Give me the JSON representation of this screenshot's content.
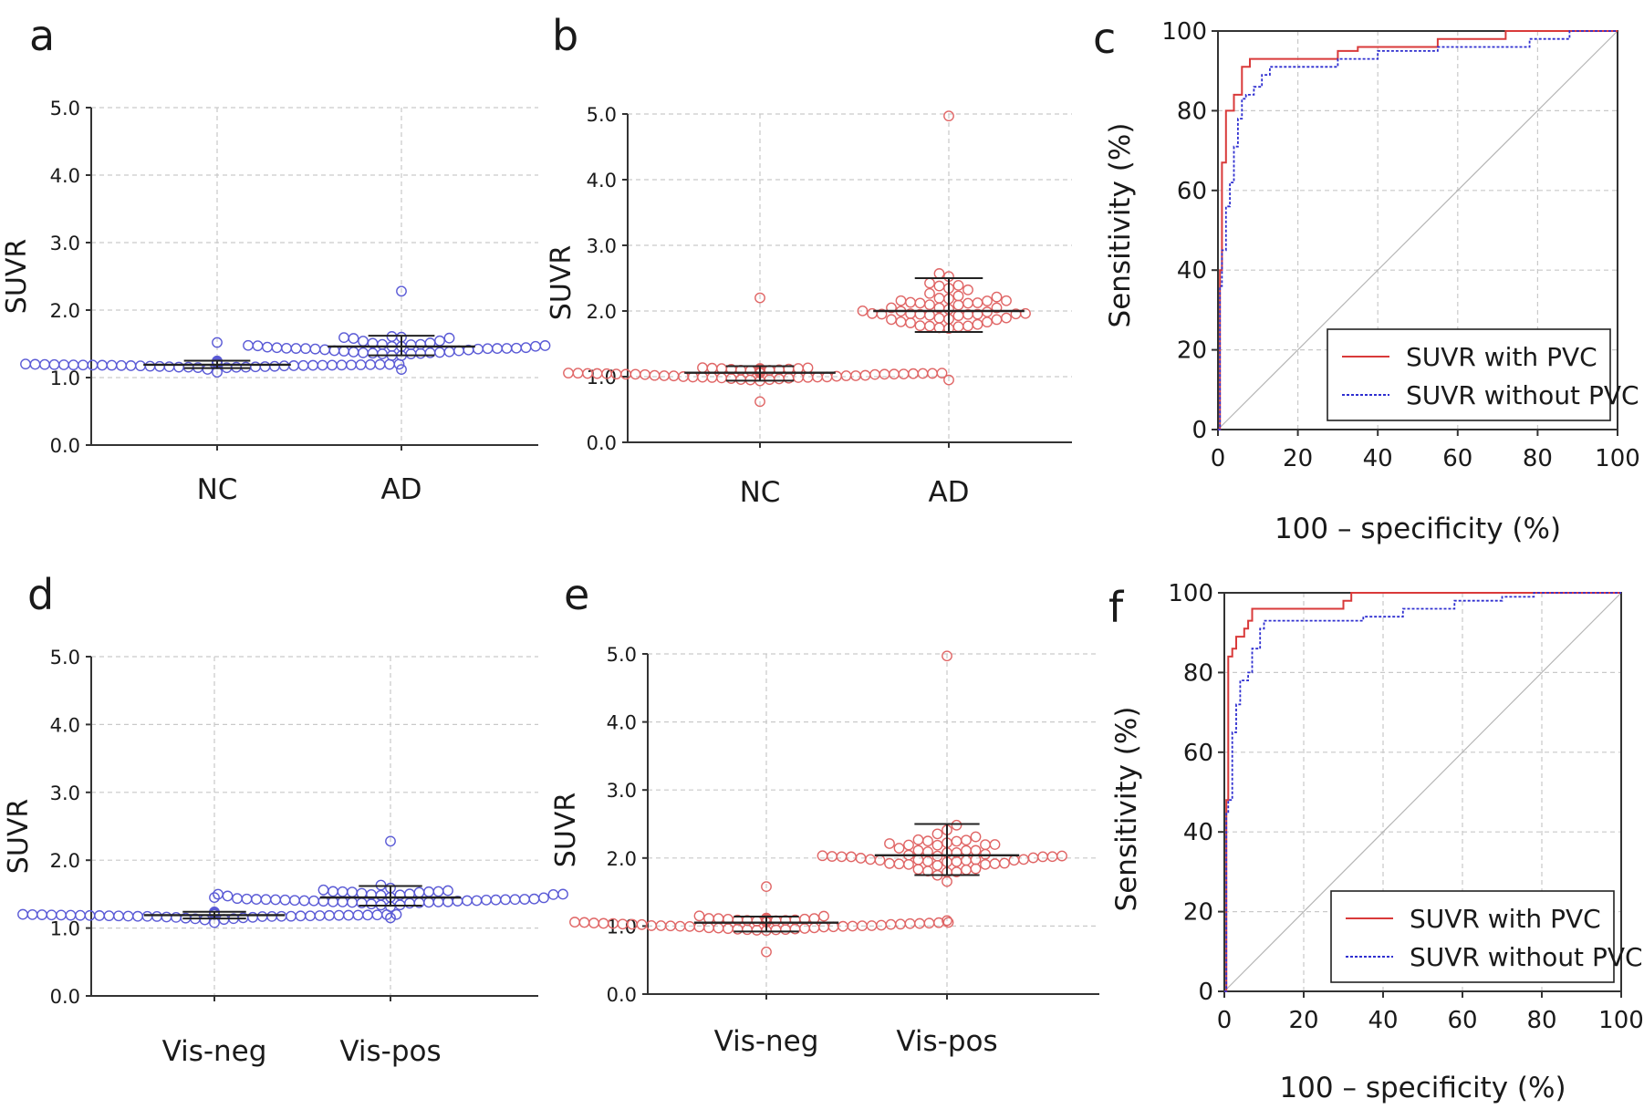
{
  "figure": {
    "colors": {
      "blue": "#5b5bd6",
      "red": "#e06666",
      "roc_red": "#d93a3a",
      "roc_blue": "#2f2fd0",
      "grid": "#c9c9c9",
      "axis": "#333333"
    }
  },
  "chart_data": [
    {
      "panel": "a",
      "type": "scatter",
      "subtype": "dot-plot",
      "ylabel": "SUVR",
      "ylim": [
        0.0,
        5.0
      ],
      "yticks": [
        "0.0",
        "1.0",
        "2.0",
        "3.0",
        "4.0",
        "5.0"
      ],
      "categories": [
        "NC",
        "AD"
      ],
      "marker_color": "#5b5bd6",
      "groups": [
        {
          "name": "NC",
          "n": 55,
          "median": 1.19,
          "q1": 1.14,
          "q3": 1.25,
          "min": 1.08,
          "max": 1.52
        },
        {
          "name": "AD",
          "n": 48,
          "median": 1.46,
          "q1": 1.33,
          "q3": 1.62,
          "min": 1.12,
          "max": 2.28
        }
      ]
    },
    {
      "panel": "b",
      "type": "scatter",
      "subtype": "dot-plot",
      "ylabel": "SUVR",
      "ylim": [
        0.0,
        5.0
      ],
      "yticks": [
        "0.0",
        "1.0",
        "2.0",
        "3.0",
        "4.0",
        "5.0"
      ],
      "categories": [
        "NC",
        "AD"
      ],
      "marker_color": "#e06666",
      "groups": [
        {
          "name": "NC",
          "n": 75,
          "median": 1.06,
          "q1": 0.94,
          "q3": 1.16,
          "min": 0.62,
          "max": 2.2
        },
        {
          "name": "AD",
          "n": 55,
          "median": 2.0,
          "q1": 1.68,
          "q3": 2.5,
          "min": 0.95,
          "max": 4.97
        }
      ]
    },
    {
      "panel": "c",
      "type": "line",
      "subtype": "roc",
      "xlabel": "100 – specificity (%)",
      "ylabel": "Sensitivity (%)",
      "xlim": [
        0,
        100
      ],
      "ylim": [
        0,
        100
      ],
      "xticks": [
        "0",
        "20",
        "40",
        "60",
        "80",
        "100"
      ],
      "yticks": [
        "0",
        "20",
        "40",
        "60",
        "80",
        "100"
      ],
      "legend": [
        "SUVR with PVC",
        "SUVR without PVC"
      ],
      "legend_position": "bottom-right",
      "series": [
        {
          "name": "SUVR with PVC",
          "x": [
            0,
            0.5,
            0.5,
            1,
            1,
            2,
            2,
            4,
            4,
            6,
            6,
            8,
            8,
            30,
            30,
            35,
            35,
            50,
            50,
            55,
            55,
            72,
            72,
            100
          ],
          "y": [
            0,
            0,
            40,
            40,
            67,
            67,
            80,
            80,
            84,
            84,
            91,
            91,
            93,
            93,
            95,
            95,
            96,
            96,
            96,
            96,
            98,
            98,
            100,
            100
          ]
        },
        {
          "name": "SUVR without PVC",
          "x": [
            0,
            0.5,
            0.5,
            1,
            1,
            2,
            2,
            3,
            3,
            4,
            4,
            5,
            5,
            6,
            6,
            7,
            7,
            9,
            9,
            11,
            11,
            13,
            13,
            30,
            30,
            40,
            40,
            55,
            55,
            78,
            78,
            88,
            88,
            100
          ],
          "y": [
            0,
            0,
            36,
            36,
            45,
            45,
            56,
            56,
            62,
            62,
            71,
            71,
            78,
            78,
            83,
            83,
            84,
            84,
            86,
            86,
            89,
            89,
            91,
            91,
            93,
            93,
            95,
            95,
            96,
            96,
            98,
            98,
            100,
            100
          ]
        }
      ]
    },
    {
      "panel": "d",
      "type": "scatter",
      "subtype": "dot-plot",
      "ylabel": "SUVR",
      "ylim": [
        0.0,
        5.0
      ],
      "yticks": [
        "0.0",
        "1.0",
        "2.0",
        "3.0",
        "4.0",
        "5.0"
      ],
      "categories": [
        "Vis-neg",
        "Vis-pos"
      ],
      "marker_color": "#5b5bd6",
      "groups": [
        {
          "name": "Vis-neg",
          "n": 60,
          "median": 1.19,
          "q1": 1.14,
          "q3": 1.24,
          "min": 1.08,
          "max": 1.45
        },
        {
          "name": "Vis-pos",
          "n": 55,
          "median": 1.45,
          "q1": 1.33,
          "q3": 1.62,
          "min": 1.15,
          "max": 2.28
        }
      ]
    },
    {
      "panel": "e",
      "type": "scatter",
      "subtype": "dot-plot",
      "ylabel": "SUVR",
      "ylim": [
        0.0,
        5.0
      ],
      "yticks": [
        "0.0",
        "1.0",
        "2.0",
        "3.0",
        "4.0",
        "5.0"
      ],
      "categories": [
        "Vis-neg",
        "Vis-pos"
      ],
      "marker_color": "#e06666",
      "groups": [
        {
          "name": "Vis-neg",
          "n": 75,
          "median": 1.05,
          "q1": 0.92,
          "q3": 1.14,
          "min": 0.62,
          "max": 1.58
        },
        {
          "name": "Vis-pos",
          "n": 60,
          "median": 2.04,
          "q1": 1.75,
          "q3": 2.5,
          "min": 1.08,
          "max": 4.97
        }
      ]
    },
    {
      "panel": "f",
      "type": "line",
      "subtype": "roc",
      "xlabel": "100 – specificity (%)",
      "ylabel": "Sensitivity (%)",
      "xlim": [
        0,
        100
      ],
      "ylim": [
        0,
        100
      ],
      "xticks": [
        "0",
        "20",
        "40",
        "60",
        "80",
        "100"
      ],
      "yticks": [
        "0",
        "20",
        "40",
        "60",
        "80",
        "100"
      ],
      "legend": [
        "SUVR with PVC",
        "SUVR without PVC"
      ],
      "legend_position": "bottom-right",
      "series": [
        {
          "name": "SUVR with PVC",
          "x": [
            0,
            0.5,
            0.5,
            1,
            1,
            2,
            2,
            3,
            3,
            5,
            5,
            6,
            6,
            7,
            7,
            30,
            30,
            32,
            32,
            100
          ],
          "y": [
            0,
            0,
            48,
            48,
            84,
            84,
            86,
            86,
            89,
            89,
            91,
            91,
            93,
            93,
            96,
            96,
            98,
            98,
            100,
            100
          ]
        },
        {
          "name": "SUVR without PVC",
          "x": [
            0,
            0.5,
            0.5,
            1,
            1,
            2,
            2,
            3,
            3,
            4,
            4,
            6,
            6,
            7,
            7,
            9,
            9,
            10,
            10,
            35,
            35,
            45,
            45,
            58,
            58,
            70,
            70,
            78,
            78,
            100
          ],
          "y": [
            0,
            0,
            45,
            45,
            48,
            48,
            65,
            65,
            72,
            72,
            78,
            78,
            80,
            80,
            86,
            86,
            91,
            91,
            93,
            93,
            94,
            94,
            96,
            96,
            98,
            98,
            99,
            99,
            100,
            100
          ]
        }
      ]
    }
  ]
}
